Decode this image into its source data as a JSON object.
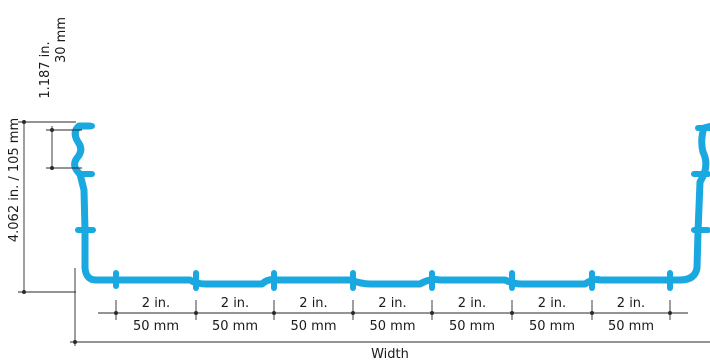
{
  "colors": {
    "profile": "#1aa8e0",
    "lines": "#2a2a2a",
    "text": "#1a1a1a"
  },
  "top_flange": {
    "inches": "1.187 in.",
    "mm": "30 mm"
  },
  "height_label": "4.062 in. / 105 mm",
  "spacing": [
    {
      "inches": "2 in.",
      "mm": "50 mm"
    },
    {
      "inches": "2 in.",
      "mm": "50 mm"
    },
    {
      "inches": "2 in.",
      "mm": "50 mm"
    },
    {
      "inches": "2 in.",
      "mm": "50 mm"
    },
    {
      "inches": "2 in.",
      "mm": "50 mm"
    },
    {
      "inches": "2 in.",
      "mm": "50 mm"
    },
    {
      "inches": "2 in.",
      "mm": "50 mm"
    }
  ],
  "width_label": "Width"
}
